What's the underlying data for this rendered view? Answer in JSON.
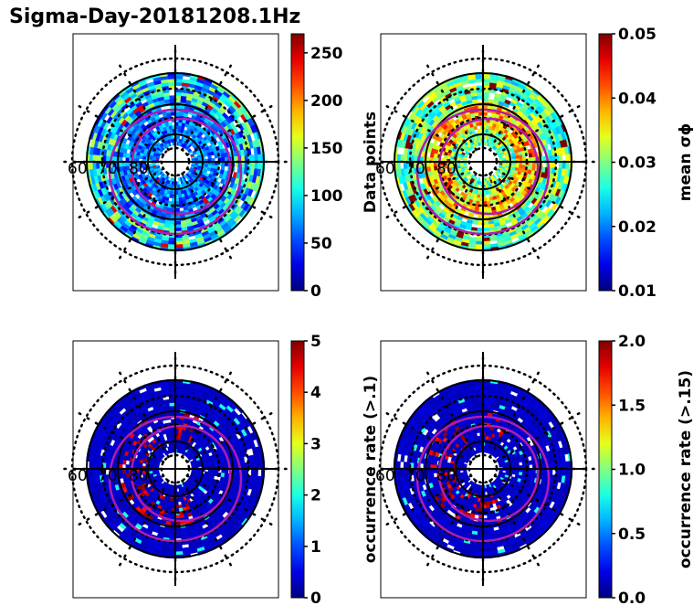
{
  "title": "Sigma-Day-20181208.1Hz",
  "chart_data": [
    {
      "type": "heatmap",
      "projection": "polar",
      "colormap": "jet",
      "latitude_labels": [
        "60",
        "70",
        "80"
      ],
      "colorbar": {
        "label": "Data points",
        "range": [
          0,
          270
        ],
        "ticks": [
          0,
          50,
          100,
          150,
          200,
          250
        ],
        "tick_labels": [
          "0",
          "50",
          "100",
          "150",
          "200",
          "250"
        ]
      }
    },
    {
      "type": "heatmap",
      "projection": "polar",
      "colormap": "jet",
      "latitude_labels": [
        "60",
        "70",
        "80"
      ],
      "colorbar": {
        "label": "mean σϕ",
        "range": [
          0.01,
          0.05
        ],
        "ticks": [
          0.01,
          0.02,
          0.03,
          0.04,
          0.05
        ],
        "tick_labels": [
          "0.01",
          "0.02",
          "0.03",
          "0.04",
          "0.05"
        ]
      }
    },
    {
      "type": "heatmap",
      "projection": "polar",
      "colormap": "jet",
      "latitude_labels": [
        "60",
        "70",
        "80"
      ],
      "colorbar": {
        "label": "occurrence rate (>.1)",
        "range": [
          0,
          5
        ],
        "ticks": [
          0,
          1,
          2,
          3,
          4,
          5
        ],
        "tick_labels": [
          "0",
          "1",
          "2",
          "3",
          "4",
          "5"
        ]
      }
    },
    {
      "type": "heatmap",
      "projection": "polar",
      "colormap": "jet",
      "latitude_labels": [
        "60",
        "70",
        "80"
      ],
      "colorbar": {
        "label": "occurrence rate (>.15)",
        "range": [
          0,
          2
        ],
        "ticks": [
          0,
          0.5,
          1,
          1.5,
          2
        ],
        "tick_labels": [
          "0.0",
          "0.5",
          "1.0",
          "1.5",
          "2.0"
        ]
      }
    }
  ]
}
